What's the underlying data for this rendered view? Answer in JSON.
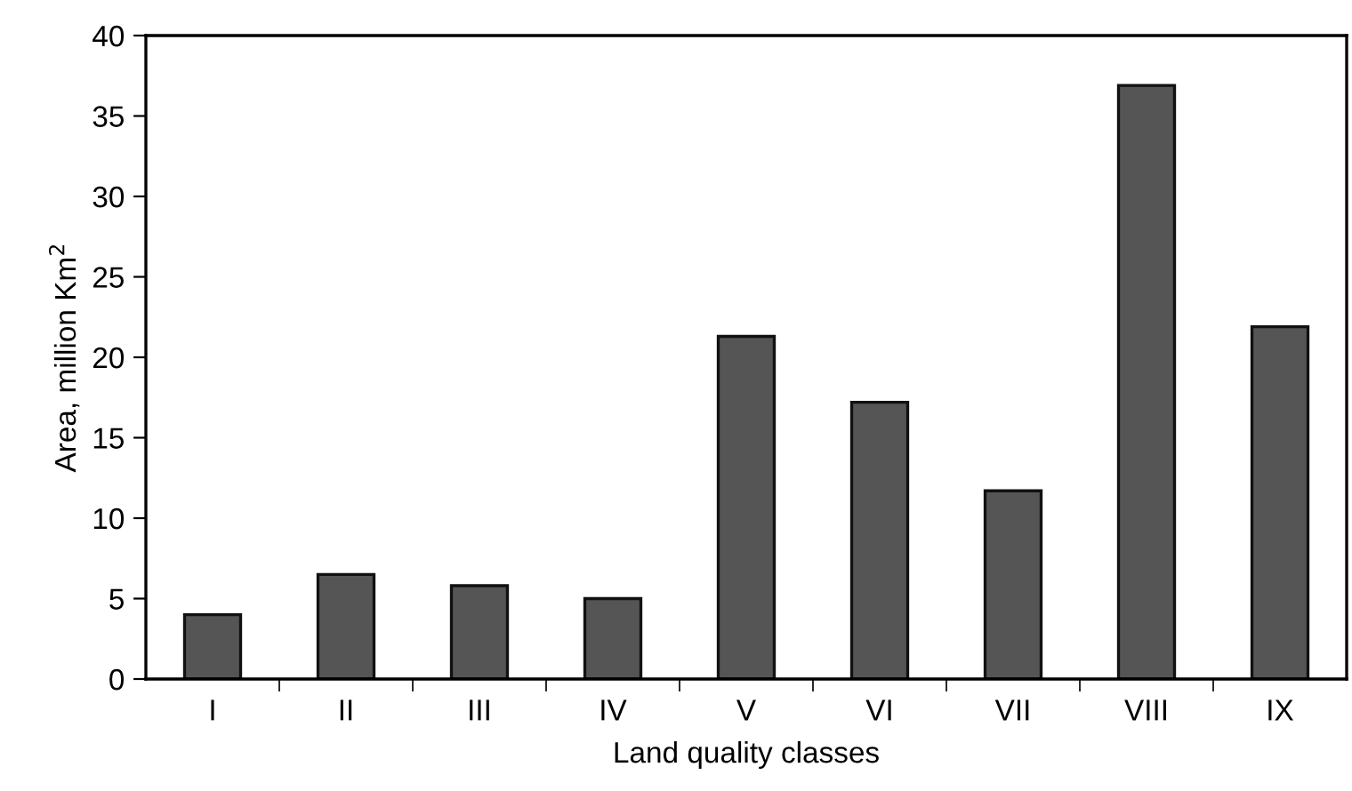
{
  "chart_data": {
    "type": "bar",
    "xlabel": "Land quality classes",
    "ylabel": "Area, million Km$^{2}$",
    "categories": [
      "I",
      "II",
      "III",
      "IV",
      "V",
      "VI",
      "VII",
      "VIII",
      "IX"
    ],
    "values": [
      4.0,
      6.5,
      5.8,
      5.0,
      21.3,
      17.2,
      11.7,
      36.9,
      21.9
    ],
    "color": "#555555",
    "ylim": [
      0,
      40
    ],
    "yticks": [
      0,
      5,
      10,
      15,
      20,
      25,
      30,
      35,
      40
    ],
    "grid": false
  }
}
